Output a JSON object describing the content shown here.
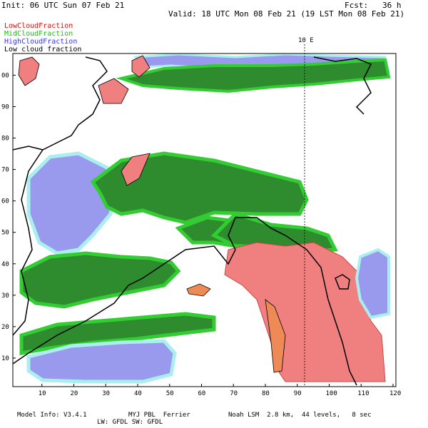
{
  "header": {
    "init": "Init: 06 UTC Sun 07 Feb 21",
    "fcst": "Fcst:   36 h",
    "valid": "Valid: 18 UTC Mon 08 Feb 21 (19 LST Mon 08 Feb 21)"
  },
  "legend": {
    "low": "LowCloudFraction",
    "mid": "MidCloudFraction",
    "high": "HighCloudFraction",
    "lcf": "Low cloud fraction"
  },
  "map": {
    "meridian_label": "10 E",
    "x_ticks": [
      "10",
      "20",
      "30",
      "40",
      "50",
      "60",
      "70",
      "80",
      "90",
      "100",
      "110",
      "120"
    ],
    "y_ticks": [
      "10",
      "20",
      "30",
      "40",
      "50",
      "60",
      "70",
      "80",
      "90",
      "00"
    ],
    "colors": {
      "low": "#f08080",
      "low_dark": "#ee8a55",
      "mid": "#2e8b2e",
      "mid_light": "#33cc33",
      "high": "#9999ee",
      "high_edge": "#aaeeee",
      "coast": "#000000"
    }
  },
  "footer": {
    "line1a": "Model Info: V3.4.1",
    "line1b": "MYJ PBL  Ferrier",
    "line1c": "Noah LSM  2.8 km,  44 levels,   8 sec",
    "line2": "LW: GFDL SW: GFDL"
  }
}
